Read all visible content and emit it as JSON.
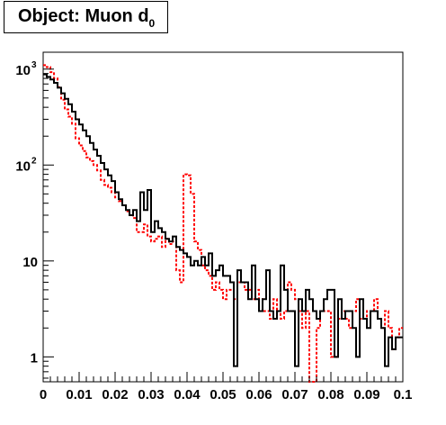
{
  "title": {
    "main": "Object: Muon d",
    "sub": "0"
  },
  "chart_data": {
    "type": "line",
    "title": "Object: Muon d0",
    "xlabel": "",
    "ylabel": "",
    "xlim": [
      0,
      0.1
    ],
    "ylim": [
      0.55,
      1500
    ],
    "y_scale": "log",
    "grid": false,
    "legend": "none",
    "x_ticks": [
      "0",
      "0.01",
      "0.02",
      "0.03",
      "0.04",
      "0.05",
      "0.06",
      "0.07",
      "0.08",
      "0.09",
      "0.1"
    ],
    "y_ticks": [
      {
        "value": 1,
        "label": "1",
        "exp": ""
      },
      {
        "value": 10,
        "label": "10",
        "exp": ""
      },
      {
        "value": 100,
        "label": "10",
        "exp": "2"
      },
      {
        "value": 1000,
        "label": "10",
        "exp": "3"
      }
    ],
    "bins": {
      "n": 100,
      "lo": 0,
      "hi": 0.1
    },
    "series": [
      {
        "style": "solid",
        "color": "#000000",
        "values": [
          880,
          830,
          780,
          720,
          640,
          560,
          490,
          430,
          360,
          300,
          265,
          230,
          200,
          170,
          145,
          125,
          105,
          90,
          78,
          68,
          52,
          44,
          38,
          34,
          30,
          34,
          26,
          52,
          34,
          55,
          20,
          26,
          22,
          20,
          17,
          16,
          18,
          14,
          13,
          12,
          11,
          9,
          10,
          9,
          11,
          9,
          12,
          7,
          8,
          9,
          7,
          7,
          6,
          0.8,
          8,
          6,
          6,
          4,
          9,
          4,
          3,
          4,
          8,
          3,
          2.5,
          3,
          9,
          5,
          3,
          3,
          0.8,
          4,
          3,
          5,
          4,
          3,
          2.5,
          3,
          4,
          5,
          5,
          1,
          4,
          2.5,
          3,
          3,
          2,
          1,
          4,
          2.5,
          2,
          3,
          3,
          2.5,
          2,
          0.8,
          1.6,
          1.2,
          1.6,
          1.6
        ]
      },
      {
        "style": "dashed",
        "color": "#ff0000",
        "values": [
          1100,
          1050,
          930,
          800,
          650,
          480,
          380,
          320,
          270,
          190,
          160,
          140,
          120,
          110,
          100,
          88,
          70,
          62,
          58,
          52,
          46,
          42,
          38,
          33,
          30,
          28,
          20,
          20,
          24,
          18,
          16,
          17,
          18,
          14,
          17,
          15,
          16,
          8,
          6,
          80,
          78,
          50,
          16,
          13,
          9,
          8,
          7,
          5,
          6,
          5,
          4,
          5,
          5,
          4,
          6,
          6,
          5,
          5,
          4,
          5,
          4,
          3,
          3,
          2.5,
          4,
          3,
          2.5,
          3,
          6,
          5,
          4,
          3,
          2,
          3,
          0.5,
          0.5,
          2,
          3,
          3,
          3,
          1,
          1,
          2.5,
          3,
          2.5,
          2,
          3,
          4,
          2.5,
          2.5,
          3,
          3,
          4,
          2.5,
          2,
          3,
          2,
          1.2,
          1.6,
          2
        ]
      }
    ]
  }
}
